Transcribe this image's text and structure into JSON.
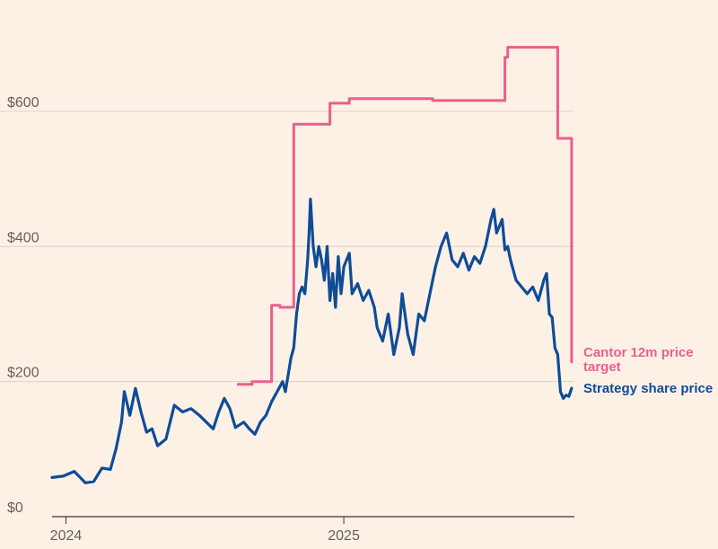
{
  "chart_data": {
    "type": "line",
    "title": "",
    "xlabel": "",
    "ylabel": "",
    "ylim": [
      0,
      725
    ],
    "yticks": [
      {
        "value": 0,
        "label": "$0"
      },
      {
        "value": 200,
        "label": "$200"
      },
      {
        "value": 400,
        "label": "$400"
      },
      {
        "value": 600,
        "label": "$600"
      }
    ],
    "xlim": [
      2023.95,
      2025.83
    ],
    "xticks": [
      {
        "value": 2024.0,
        "label": "2024"
      },
      {
        "value": 2025.0,
        "label": "2025"
      }
    ],
    "grid": true,
    "colors": {
      "background": "#fdf1e6",
      "grid": "#dcd2c8",
      "axis": "#3a3735",
      "strategy": "#0f4c97",
      "cantor": "#eb5e8d"
    },
    "series": [
      {
        "name": "Strategy share price",
        "label": "Strategy share price",
        "color": "#0f4c97",
        "points": [
          [
            2023.95,
            58
          ],
          [
            2023.99,
            60
          ],
          [
            2024.03,
            67
          ],
          [
            2024.07,
            50
          ],
          [
            2024.1,
            52
          ],
          [
            2024.13,
            72
          ],
          [
            2024.16,
            70
          ],
          [
            2024.18,
            100
          ],
          [
            2024.2,
            140
          ],
          [
            2024.21,
            185
          ],
          [
            2024.23,
            150
          ],
          [
            2024.25,
            190
          ],
          [
            2024.27,
            155
          ],
          [
            2024.29,
            125
          ],
          [
            2024.31,
            130
          ],
          [
            2024.33,
            105
          ],
          [
            2024.36,
            115
          ],
          [
            2024.39,
            165
          ],
          [
            2024.42,
            155
          ],
          [
            2024.45,
            160
          ],
          [
            2024.48,
            150
          ],
          [
            2024.51,
            138
          ],
          [
            2024.53,
            130
          ],
          [
            2024.55,
            155
          ],
          [
            2024.57,
            175
          ],
          [
            2024.59,
            160
          ],
          [
            2024.61,
            132
          ],
          [
            2024.64,
            140
          ],
          [
            2024.66,
            130
          ],
          [
            2024.68,
            122
          ],
          [
            2024.7,
            140
          ],
          [
            2024.72,
            150
          ],
          [
            2024.74,
            170
          ],
          [
            2024.76,
            185
          ],
          [
            2024.78,
            200
          ],
          [
            2024.79,
            185
          ],
          [
            2024.8,
            210
          ],
          [
            2024.81,
            235
          ],
          [
            2024.82,
            250
          ],
          [
            2024.83,
            300
          ],
          [
            2024.84,
            330
          ],
          [
            2024.85,
            340
          ],
          [
            2024.86,
            330
          ],
          [
            2024.87,
            380
          ],
          [
            2024.875,
            420
          ],
          [
            2024.88,
            470
          ],
          [
            2024.89,
            400
          ],
          [
            2024.9,
            370
          ],
          [
            2024.91,
            400
          ],
          [
            2024.92,
            380
          ],
          [
            2024.93,
            350
          ],
          [
            2024.94,
            400
          ],
          [
            2024.95,
            320
          ],
          [
            2024.96,
            360
          ],
          [
            2024.97,
            310
          ],
          [
            2024.98,
            385
          ],
          [
            2024.99,
            330
          ],
          [
            2025.0,
            370
          ],
          [
            2025.02,
            390
          ],
          [
            2025.03,
            330
          ],
          [
            2025.05,
            345
          ],
          [
            2025.07,
            320
          ],
          [
            2025.09,
            335
          ],
          [
            2025.11,
            310
          ],
          [
            2025.12,
            280
          ],
          [
            2025.14,
            260
          ],
          [
            2025.16,
            300
          ],
          [
            2025.18,
            240
          ],
          [
            2025.2,
            280
          ],
          [
            2025.21,
            330
          ],
          [
            2025.23,
            270
          ],
          [
            2025.25,
            240
          ],
          [
            2025.27,
            300
          ],
          [
            2025.29,
            290
          ],
          [
            2025.31,
            330
          ],
          [
            2025.33,
            370
          ],
          [
            2025.35,
            400
          ],
          [
            2025.37,
            420
          ],
          [
            2025.39,
            380
          ],
          [
            2025.41,
            370
          ],
          [
            2025.43,
            390
          ],
          [
            2025.45,
            365
          ],
          [
            2025.47,
            385
          ],
          [
            2025.49,
            375
          ],
          [
            2025.51,
            400
          ],
          [
            2025.53,
            440
          ],
          [
            2025.54,
            455
          ],
          [
            2025.55,
            420
          ],
          [
            2025.57,
            440
          ],
          [
            2025.58,
            395
          ],
          [
            2025.59,
            400
          ],
          [
            2025.6,
            380
          ],
          [
            2025.62,
            350
          ],
          [
            2025.64,
            340
          ],
          [
            2025.66,
            330
          ],
          [
            2025.68,
            340
          ],
          [
            2025.7,
            320
          ],
          [
            2025.72,
            350
          ],
          [
            2025.73,
            360
          ],
          [
            2025.74,
            300
          ],
          [
            2025.75,
            295
          ],
          [
            2025.76,
            250
          ],
          [
            2025.77,
            240
          ],
          [
            2025.78,
            185
          ],
          [
            2025.79,
            175
          ],
          [
            2025.8,
            180
          ],
          [
            2025.81,
            178
          ],
          [
            2025.82,
            190
          ]
        ]
      },
      {
        "name": "Cantor 12m price target",
        "label": "Cantor 12m price\ntarget",
        "color": "#eb5e8d",
        "step": true,
        "points": [
          [
            2024.62,
            196
          ],
          [
            2024.67,
            196
          ],
          [
            2024.67,
            200
          ],
          [
            2024.74,
            200
          ],
          [
            2024.74,
            313
          ],
          [
            2024.77,
            313
          ],
          [
            2024.77,
            310
          ],
          [
            2024.82,
            310
          ],
          [
            2024.82,
            581
          ],
          [
            2024.95,
            581
          ],
          [
            2024.95,
            612
          ],
          [
            2025.02,
            612
          ],
          [
            2025.02,
            619
          ],
          [
            2025.32,
            619
          ],
          [
            2025.32,
            616
          ],
          [
            2025.58,
            616
          ],
          [
            2025.58,
            680
          ],
          [
            2025.59,
            680
          ],
          [
            2025.59,
            695
          ],
          [
            2025.77,
            695
          ],
          [
            2025.77,
            560
          ],
          [
            2025.82,
            560
          ],
          [
            2025.82,
            229
          ]
        ]
      }
    ]
  }
}
